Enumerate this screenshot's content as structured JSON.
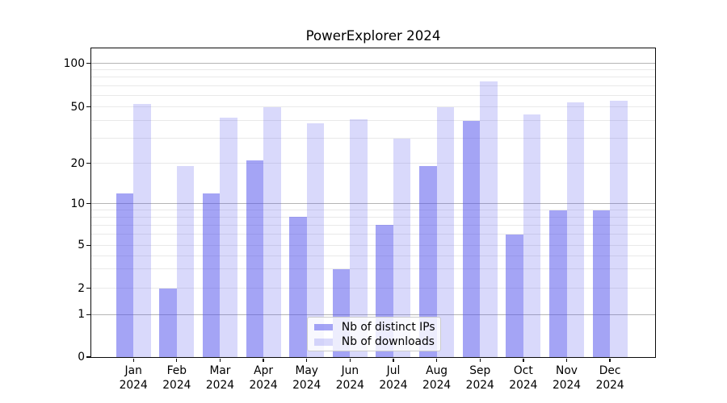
{
  "title": "PowerExplorer 2024",
  "legend": {
    "items": [
      {
        "label": "Nb of distinct IPs",
        "series": "ips"
      },
      {
        "label": "Nb of downloads",
        "series": "downloads"
      }
    ]
  },
  "y_axis": {
    "tick_labels": [
      "100",
      "50",
      "20",
      "10",
      "5",
      "2",
      "1",
      "0"
    ],
    "tick_values": [
      100,
      50,
      20,
      10,
      5,
      2,
      1,
      0
    ]
  },
  "x_axis": {
    "months": [
      "Jan",
      "Feb",
      "Mar",
      "Apr",
      "May",
      "Jun",
      "Jul",
      "Aug",
      "Sep",
      "Oct",
      "Nov",
      "Dec"
    ],
    "year": "2024"
  },
  "colors": {
    "ips_bar": "rgba(80,80,236,0.52)",
    "downloads_bar": "rgba(80,80,236,0.22)",
    "grid_major": "#b5b5b5",
    "grid_minor": "#e9e9e9",
    "spine": "#0b0b0b"
  },
  "chart_data": {
    "type": "bar",
    "title": "PowerExplorer 2024",
    "categories": [
      "Jan 2024",
      "Feb 2024",
      "Mar 2024",
      "Apr 2024",
      "May 2024",
      "Jun 2024",
      "Jul 2024",
      "Aug 2024",
      "Sep 2024",
      "Oct 2024",
      "Nov 2024",
      "Dec 2024"
    ],
    "series": [
      {
        "name": "Nb of distinct IPs",
        "values": [
          12,
          2,
          12,
          21,
          8,
          3,
          7,
          19,
          40,
          6,
          9,
          9
        ]
      },
      {
        "name": "Nb of downloads",
        "values": [
          52,
          19,
          42,
          50,
          38,
          41,
          30,
          50,
          75,
          44,
          54,
          55
        ]
      }
    ],
    "xlabel": "",
    "ylabel": "",
    "yscale": "symlog-like (log above 1, linear 0-1)",
    "y_ticks": [
      0,
      1,
      2,
      5,
      10,
      20,
      50,
      100
    ],
    "y_minor_gridlines": [
      2,
      3,
      4,
      5,
      6,
      7,
      8,
      9,
      20,
      30,
      40,
      50,
      60,
      70,
      80,
      90
    ],
    "y_major_gridlines": [
      1,
      10,
      100
    ],
    "ylim": [
      0,
      128
    ],
    "grid": "horizontal major+minor",
    "legend_position": "lower center"
  }
}
